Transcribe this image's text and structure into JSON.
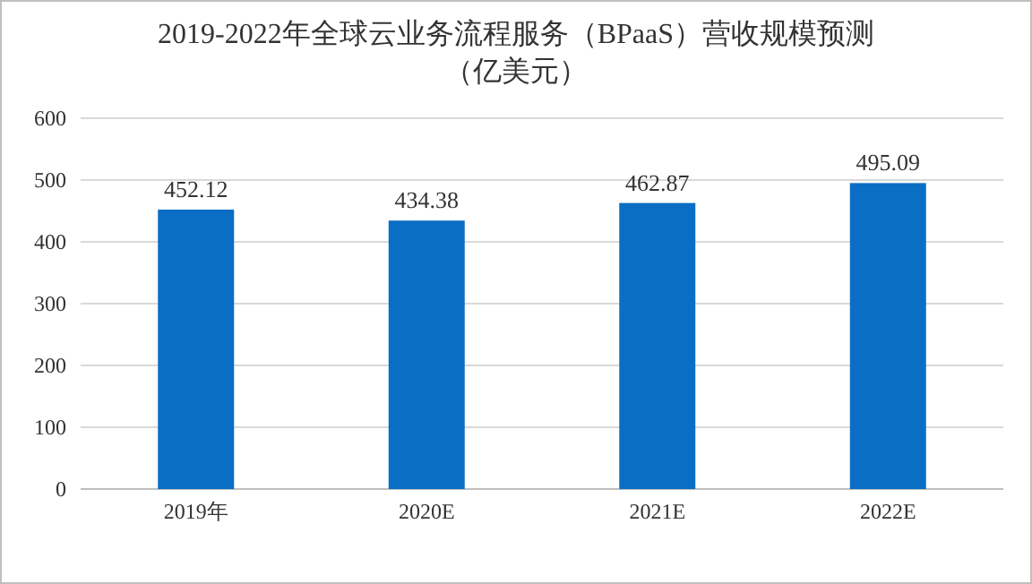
{
  "chart_data": {
    "type": "bar",
    "title": "2019-2022年全球云业务流程服务（BPaaS）营收规模预测（亿美元）",
    "categories": [
      "2019年",
      "2020E",
      "2021E",
      "2022E"
    ],
    "values": [
      452.12,
      434.38,
      462.87,
      495.09
    ],
    "color": "#0a6ec4",
    "ylim": [
      0,
      600
    ],
    "yticks": [
      0,
      100,
      200,
      300,
      400,
      500,
      600
    ],
    "grid": "y",
    "data_labels": true
  }
}
